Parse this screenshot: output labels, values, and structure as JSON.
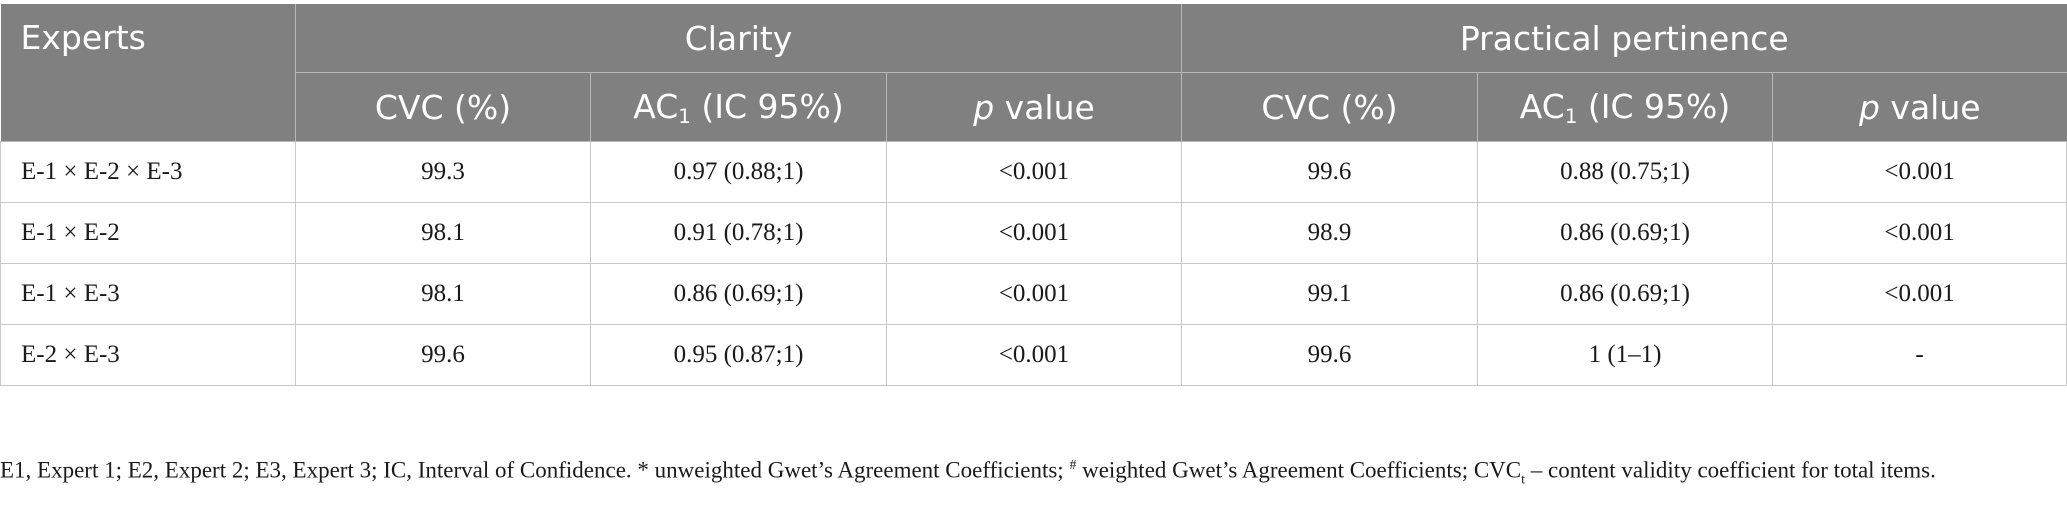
{
  "header": {
    "experts": "Experts",
    "clarity": "Clarity",
    "practical": "Practical pertinence",
    "cvc": "CVC (%)",
    "ac_prefix": "AC",
    "ac_sub": "1",
    "ac_suffix": " (IC 95%)",
    "p_italic": "p",
    "p_suffix": " value"
  },
  "rows": [
    {
      "experts": "E-1 × E-2 × E-3",
      "c_cvc": "99.3",
      "c_ac": "0.97 (0.88;1)",
      "c_p": "<0.001",
      "p_cvc": "99.6",
      "p_ac": "0.88 (0.75;1)",
      "p_p": "<0.001"
    },
    {
      "experts": "E-1 × E-2",
      "c_cvc": "98.1",
      "c_ac": "0.91 (0.78;1)",
      "c_p": "<0.001",
      "p_cvc": "98.9",
      "p_ac": "0.86 (0.69;1)",
      "p_p": "<0.001"
    },
    {
      "experts": "E-1 × E-3",
      "c_cvc": "98.1",
      "c_ac": "0.86 (0.69;1)",
      "c_p": "<0.001",
      "p_cvc": "99.1",
      "p_ac": "0.86 (0.69;1)",
      "p_p": "<0.001"
    },
    {
      "experts": "E-2 × E-3",
      "c_cvc": "99.6",
      "c_ac": "0.95 (0.87;1)",
      "c_p": "<0.001",
      "p_cvc": "99.6",
      "p_ac": "1 (1–1)",
      "p_p": "-"
    }
  ],
  "footnote": {
    "part1": "E1, Expert 1; E2, Expert 2; E3, Expert 3; IC, Interval of Confidence. * unweighted Gwet’s Agreement Coefficients; ",
    "hash": "#",
    "part2": " weighted Gwet’s Agreement Coefficients; CVC",
    "sub_t": "t",
    "part3": " – content validity coefficient for total items."
  }
}
